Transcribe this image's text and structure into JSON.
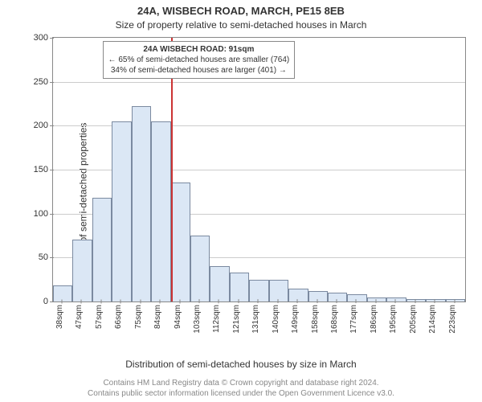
{
  "title_main": "24A, WISBECH ROAD, MARCH, PE15 8EB",
  "title_sub": "Size of property relative to semi-detached houses in March",
  "ylabel": "Number of semi-detached properties",
  "xlabel": "Distribution of semi-detached houses by size in March",
  "footer_line1": "Contains HM Land Registry data © Crown copyright and database right 2024.",
  "footer_line2": "Contains public sector information licensed under the Open Government Licence v3.0.",
  "chart": {
    "type": "histogram",
    "ylim": [
      0,
      300
    ],
    "ytick_step": 50,
    "yticks": [
      0,
      50,
      100,
      150,
      200,
      250,
      300
    ],
    "categories": [
      "38sqm",
      "47sqm",
      "57sqm",
      "66sqm",
      "75sqm",
      "84sqm",
      "94sqm",
      "103sqm",
      "112sqm",
      "121sqm",
      "131sqm",
      "140sqm",
      "149sqm",
      "158sqm",
      "168sqm",
      "177sqm",
      "186sqm",
      "195sqm",
      "205sqm",
      "214sqm",
      "223sqm"
    ],
    "values": [
      18,
      70,
      118,
      205,
      222,
      205,
      135,
      75,
      40,
      33,
      25,
      25,
      15,
      12,
      10,
      8,
      5,
      5,
      3,
      3,
      3
    ],
    "bar_fill": "#dbe7f5",
    "bar_stroke": "#7b8aa0",
    "grid_color": "#cccccc",
    "axis_color": "#888888",
    "background_color": "#ffffff",
    "marker_color": "#cc3333",
    "marker_bin_index": 5,
    "title_fontsize": 13,
    "label_fontsize": 12,
    "tick_fontsize": 11
  },
  "info": {
    "title": "24A WISBECH ROAD: 91sqm",
    "line_left": "← 65% of semi-detached houses are smaller (764)",
    "line_right": "34% of semi-detached houses are larger (401) →"
  }
}
